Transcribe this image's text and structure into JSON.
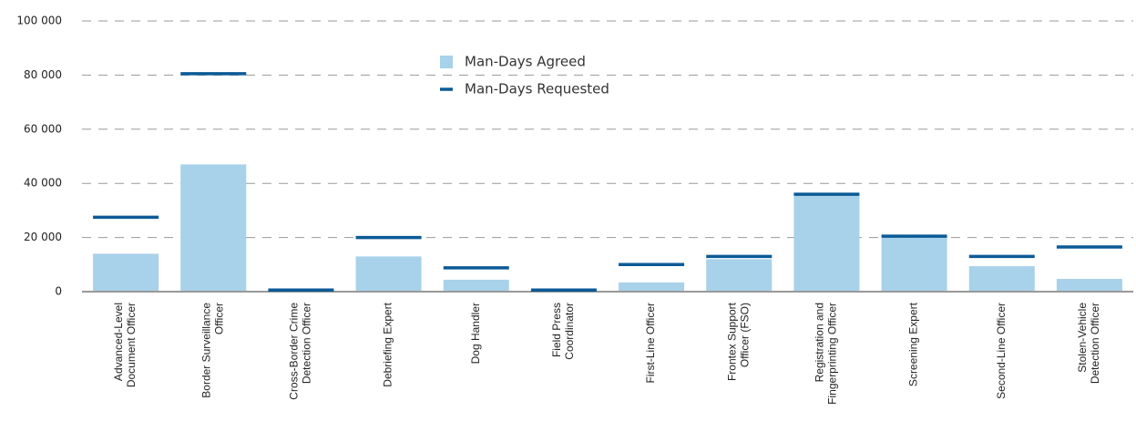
{
  "chart_data": {
    "type": "bar",
    "categories": [
      [
        "Advanced-Level",
        "Document Officer"
      ],
      [
        "Border Surveillance",
        "Officer"
      ],
      [
        "Cross-Border Crime",
        "Detection Officer"
      ],
      [
        "Debriefing Expert"
      ],
      [
        "Dog Handler"
      ],
      [
        "Field Press",
        "Coordinator"
      ],
      [
        "First-Line Officer"
      ],
      [
        "Frontex Support",
        "Officer (FSO)"
      ],
      [
        "Registration and",
        "Fingerprinting Officer"
      ],
      [
        "Screening Expert"
      ],
      [
        "Second-Line Officer"
      ],
      [
        "Stolen-Vehicle",
        "Detection Officer"
      ]
    ],
    "series": [
      {
        "name": "Man-Days Agreed",
        "color": "#a8d1ea",
        "values": [
          14000,
          47000,
          300,
          13000,
          4400,
          300,
          3400,
          12000,
          35500,
          20000,
          9400,
          4700
        ]
      },
      {
        "name": "Man-Days Requested",
        "color": "#0b5a96",
        "values": [
          27500,
          80500,
          600,
          20000,
          8800,
          600,
          10000,
          13000,
          36000,
          20500,
          13000,
          16500
        ]
      }
    ],
    "ylim": [
      0,
      100000
    ],
    "yticks": [
      0,
      {
        "value": 20000,
        "label": "20 000"
      },
      {
        "value": 40000,
        "label": "40 000"
      },
      {
        "value": 60000,
        "label": "60 000"
      },
      {
        "value": 80000,
        "label": "80 000"
      },
      {
        "value": 100000,
        "label": "100 000"
      }
    ],
    "grid": true
  }
}
